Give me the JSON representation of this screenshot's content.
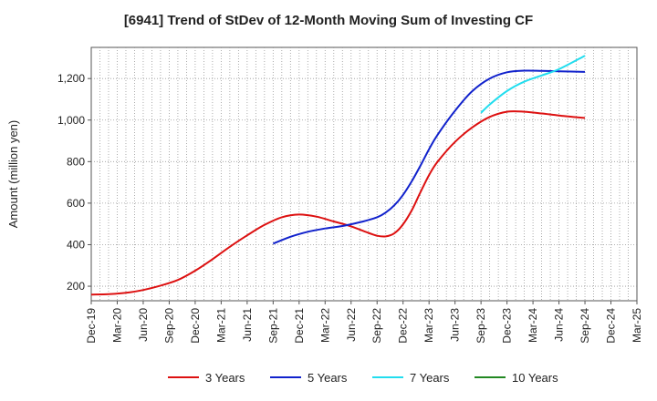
{
  "chart_data": {
    "type": "line",
    "title": "[6941]  Trend of StDev of 12-Month Moving Sum of Investing CF",
    "xlabel": "",
    "ylabel": "Amount (million yen)",
    "ylim": [
      130,
      1350
    ],
    "xlim": [
      "2019-12",
      "2025-03"
    ],
    "yticks": [
      200,
      400,
      600,
      800,
      1000,
      1200
    ],
    "xticks": [
      "Dec-19",
      "Mar-20",
      "Jun-20",
      "Sep-20",
      "Dec-20",
      "Mar-21",
      "Jun-21",
      "Sep-21",
      "Dec-21",
      "Mar-22",
      "Jun-22",
      "Sep-22",
      "Dec-22",
      "Mar-23",
      "Jun-23",
      "Sep-23",
      "Dec-23",
      "Mar-24",
      "Jun-24",
      "Sep-24",
      "Dec-24",
      "Mar-25"
    ],
    "grid": true,
    "legend_position": "bottom",
    "series": [
      {
        "name": "3 Years",
        "color": "#dd1111",
        "x": [
          "2019-12",
          "2020-02",
          "2020-04",
          "2020-06",
          "2020-08",
          "2020-10",
          "2020-12",
          "2021-02",
          "2021-04",
          "2021-06",
          "2021-08",
          "2021-10",
          "2021-12",
          "2022-02",
          "2022-04",
          "2022-06",
          "2022-08",
          "2022-09",
          "2022-10",
          "2022-11",
          "2022-12",
          "2023-01",
          "2023-02",
          "2023-03",
          "2023-04",
          "2023-06",
          "2023-08",
          "2023-10",
          "2023-12",
          "2024-02",
          "2024-04",
          "2024-06",
          "2024-09"
        ],
        "y": [
          160,
          162,
          168,
          182,
          203,
          230,
          275,
          330,
          390,
          445,
          495,
          532,
          545,
          535,
          512,
          488,
          457,
          443,
          440,
          455,
          498,
          565,
          652,
          735,
          800,
          895,
          965,
          1015,
          1040,
          1040,
          1032,
          1022,
          1010
        ]
      },
      {
        "name": "5 Years",
        "color": "#1122cc",
        "x": [
          "2021-09",
          "2021-11",
          "2022-01",
          "2022-03",
          "2022-05",
          "2022-07",
          "2022-09",
          "2022-10",
          "2022-11",
          "2022-12",
          "2023-01",
          "2023-02",
          "2023-03",
          "2023-04",
          "2023-06",
          "2023-08",
          "2023-10",
          "2023-12",
          "2024-02",
          "2024-04",
          "2024-06",
          "2024-09"
        ],
        "y": [
          405,
          438,
          462,
          478,
          490,
          508,
          532,
          555,
          590,
          640,
          705,
          780,
          860,
          930,
          1045,
          1140,
          1200,
          1230,
          1238,
          1237,
          1235,
          1232
        ]
      },
      {
        "name": "7 Years",
        "color": "#22ddee",
        "x": [
          "2023-09",
          "2023-10",
          "2023-12",
          "2024-02",
          "2024-04",
          "2024-06",
          "2024-09"
        ],
        "y": [
          1035,
          1075,
          1140,
          1185,
          1215,
          1245,
          1310
        ]
      },
      {
        "name": "10 Years",
        "color": "#228822",
        "x": [],
        "y": []
      }
    ]
  }
}
